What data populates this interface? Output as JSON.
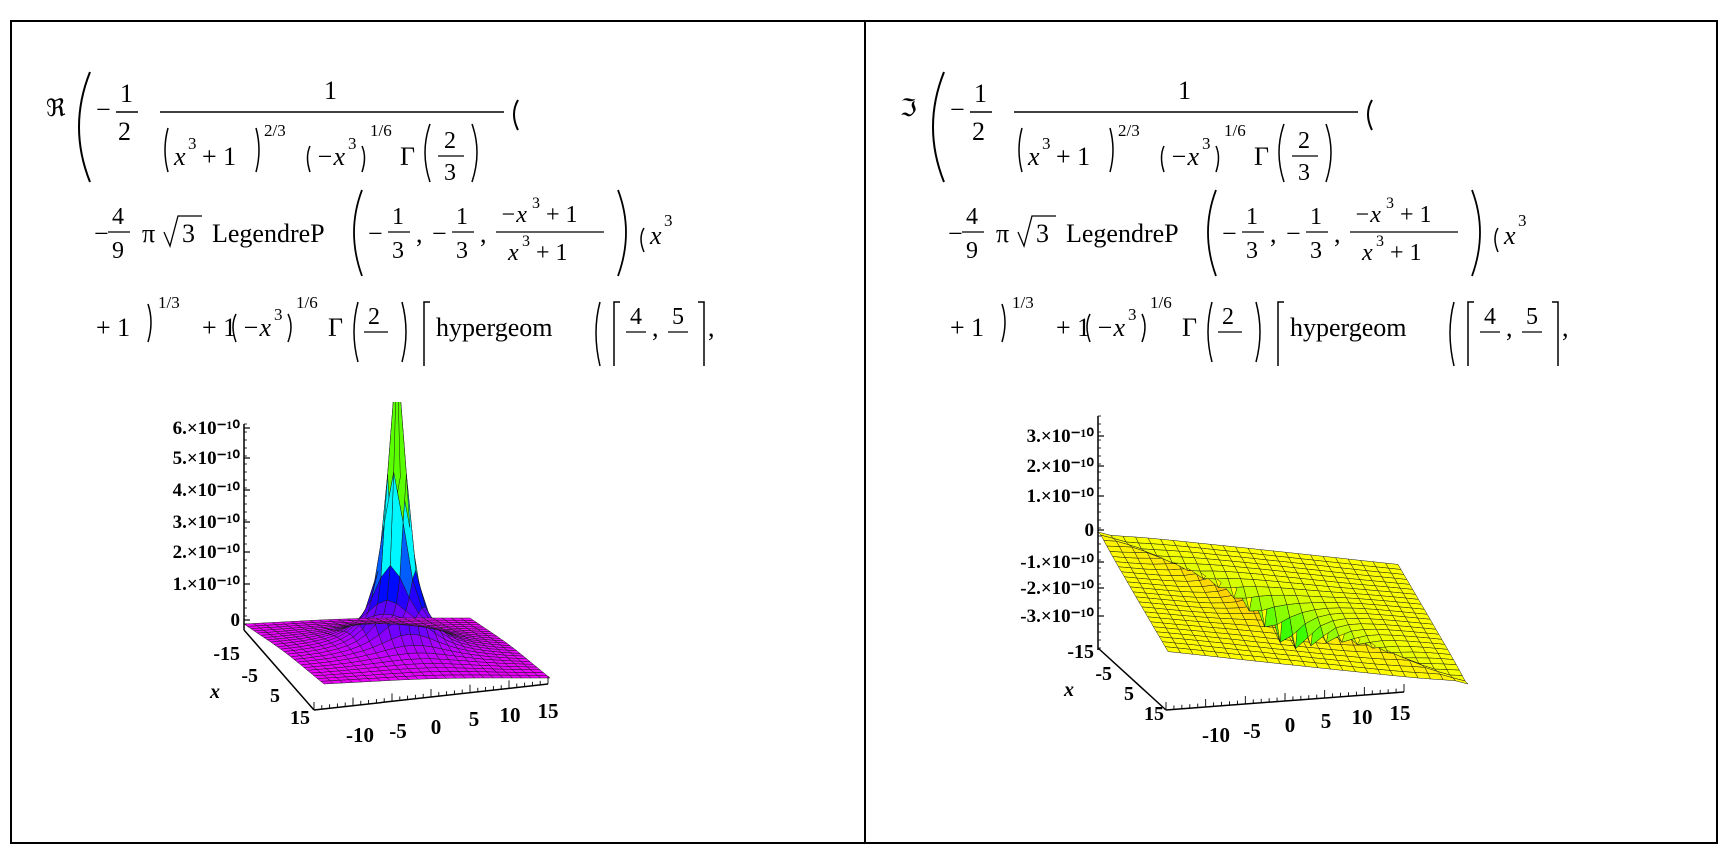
{
  "formula": {
    "re_symbol": "ℜ",
    "im_symbol": "ℑ",
    "minus": "−",
    "one": "1",
    "two": "2",
    "three": "3",
    "four": "4",
    "five": "5",
    "nine": "9",
    "x": "x",
    "pow_two_thirds": "2/3",
    "pow_one_sixth": "1/6",
    "pow_one_third": "1/3",
    "gamma": "Γ",
    "pi": "π",
    "legendre": "LegendreP",
    "hypergeom": "hypergeom",
    "comma": ",",
    "plus_one": "+ 1",
    "neg_x": "−x"
  },
  "chart_data": [
    {
      "type": "surface3d",
      "expression": "Re",
      "z_tick_labels": [
        "6.×10⁻¹⁰",
        "5.×10⁻¹⁰",
        "4.×10⁻¹⁰",
        "3.×10⁻¹⁰",
        "2.×10⁻¹⁰",
        "1.×10⁻¹⁰",
        "0"
      ],
      "z_ticks": [
        6e-10,
        5e-10,
        4e-10,
        3e-10,
        2e-10,
        1e-10,
        0
      ],
      "x_tick_labels": [
        "-15",
        "-5",
        "5",
        "15"
      ],
      "y_tick_labels": [
        "-10",
        "-5",
        "0",
        "5",
        "10",
        "15"
      ],
      "x_axis_label": "x",
      "xlim": [
        -15,
        15
      ],
      "ylim": [
        -15,
        15
      ],
      "colors": [
        "#ff00ff",
        "#0000ff",
        "#00ffff",
        "#00ff00",
        "#ffff00",
        "#ff0000"
      ]
    },
    {
      "type": "surface3d",
      "expression": "Im",
      "z_tick_labels": [
        "3.×10⁻¹⁰",
        "2.×10⁻¹⁰",
        "1.×10⁻¹⁰",
        "0",
        "-1.×10⁻¹⁰",
        "-2.×10⁻¹⁰",
        "-3.×10⁻¹⁰"
      ],
      "z_ticks": [
        3e-10,
        2e-10,
        1e-10,
        0,
        -1e-10,
        -2e-10,
        -3e-10
      ],
      "x_tick_labels": [
        "-15",
        "-5",
        "5",
        "15"
      ],
      "y_tick_labels": [
        "-10",
        "-5",
        "0",
        "5",
        "10",
        "15"
      ],
      "x_axis_label": "x",
      "xlim": [
        -15,
        15
      ],
      "ylim": [
        -15,
        15
      ],
      "colors": [
        "#2ee6a0",
        "#00ffff",
        "#00ff00",
        "#ffff00",
        "#ff0000",
        "#0000ff",
        "#ff00ff"
      ]
    }
  ]
}
